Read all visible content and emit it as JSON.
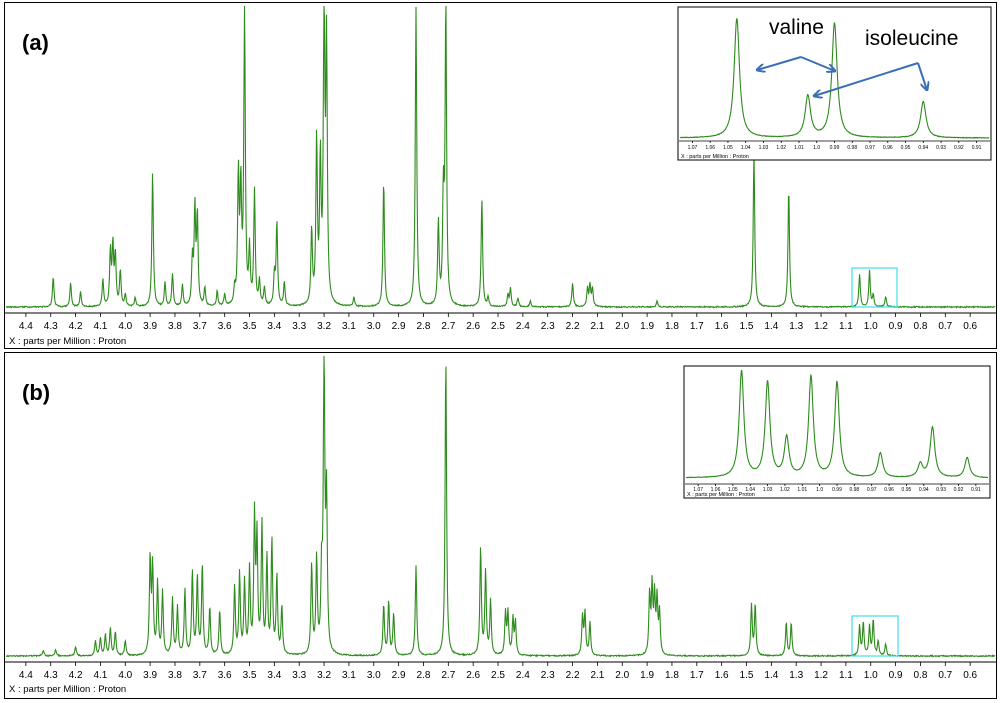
{
  "figure": {
    "annotations": {
      "valine": "valine",
      "isoleucine": "isoleucine"
    },
    "colors": {
      "spectrum": "#2e8b1e",
      "highlight_box": "#40e0f0",
      "arrow": "#3a6fb5",
      "frame": "#000000"
    }
  },
  "chart_data": [
    {
      "type": "line",
      "panel_label": "(a)",
      "xlabel": "X : parts per Million : Proton",
      "x_axis_reversed": true,
      "xlim": [
        4.48,
        0.5
      ],
      "x_ticks": [
        "4.4",
        "4.3",
        "4.2",
        "4.1",
        "4.0",
        "3.9",
        "3.8",
        "3.7",
        "3.6",
        "3.5",
        "3.4",
        "3.3",
        "3.2",
        "3.1",
        "3.0",
        "2.9",
        "2.8",
        "2.7",
        "2.6",
        "2.5",
        "2.4",
        "2.3",
        "2.2",
        "2.1",
        "2.0",
        "1.9",
        "1.8",
        "1.7",
        "1.6",
        "1.5",
        "1.4",
        "1.3",
        "1.2",
        "1.1",
        "1.0",
        "0.9",
        "0.8",
        "0.7",
        "0.6"
      ],
      "peak_width_ppm": 0.0035,
      "peaks": [
        [
          4.29,
          0.1
        ],
        [
          4.22,
          0.08
        ],
        [
          4.18,
          0.05
        ],
        [
          4.09,
          0.09
        ],
        [
          4.06,
          0.18
        ],
        [
          4.05,
          0.2
        ],
        [
          4.04,
          0.17
        ],
        [
          4.02,
          0.12
        ],
        [
          4.0,
          0.04
        ],
        [
          3.96,
          0.03
        ],
        [
          3.89,
          0.45
        ],
        [
          3.84,
          0.08
        ],
        [
          3.81,
          0.11
        ],
        [
          3.77,
          0.07
        ],
        [
          3.73,
          0.15
        ],
        [
          3.72,
          0.32
        ],
        [
          3.71,
          0.3
        ],
        [
          3.68,
          0.06
        ],
        [
          3.63,
          0.05
        ],
        [
          3.6,
          0.04
        ],
        [
          3.56,
          0.05
        ],
        [
          3.545,
          0.43
        ],
        [
          3.535,
          0.38
        ],
        [
          3.52,
          1.0
        ],
        [
          3.5,
          0.18
        ],
        [
          3.48,
          0.38
        ],
        [
          3.46,
          0.08
        ],
        [
          3.44,
          0.06
        ],
        [
          3.4,
          0.1
        ],
        [
          3.39,
          0.28
        ],
        [
          3.36,
          0.08
        ],
        [
          3.25,
          0.25
        ],
        [
          3.23,
          0.55
        ],
        [
          3.215,
          0.47
        ],
        [
          3.2,
          1.0
        ],
        [
          3.19,
          0.85
        ],
        [
          3.08,
          0.03
        ],
        [
          2.96,
          0.42
        ],
        [
          2.83,
          1.0
        ],
        [
          2.74,
          0.28
        ],
        [
          2.72,
          0.35
        ],
        [
          2.71,
          1.0
        ],
        [
          2.565,
          0.36
        ],
        [
          2.54,
          0.03
        ],
        [
          2.46,
          0.04
        ],
        [
          2.45,
          0.06
        ],
        [
          2.42,
          0.03
        ],
        [
          2.37,
          0.02
        ],
        [
          2.2,
          0.08
        ],
        [
          2.14,
          0.06
        ],
        [
          2.13,
          0.07
        ],
        [
          2.12,
          0.06
        ],
        [
          1.86,
          0.02
        ],
        [
          1.47,
          0.52
        ],
        [
          1.33,
          0.4
        ],
        [
          1.045,
          0.11
        ],
        [
          1.005,
          0.12
        ],
        [
          0.99,
          0.04
        ],
        [
          0.94,
          0.035
        ]
      ],
      "inset": {
        "x_ticks": [
          "1.07",
          "1.06",
          "1.05",
          "1.04",
          "1.03",
          "1.02",
          "1.01",
          "1.0",
          "0.99",
          "0.98",
          "0.97",
          "0.96",
          "0.95",
          "0.94",
          "0.93",
          "0.92",
          "0.91"
        ],
        "xlim": [
          1.077,
          0.903
        ],
        "xlabel": "X : parts per Million : Proton",
        "peak_width_ppm": 0.0018,
        "peaks": [
          [
            1.045,
            0.92
          ],
          [
            1.005,
            0.32
          ],
          [
            0.99,
            0.88
          ],
          [
            0.94,
            0.28
          ]
        ]
      }
    },
    {
      "type": "line",
      "panel_label": "(b)",
      "xlabel": "X : parts per Million : Proton",
      "x_axis_reversed": true,
      "xlim": [
        4.48,
        0.5
      ],
      "x_ticks": [
        "4.4",
        "4.3",
        "4.2",
        "4.1",
        "4.0",
        "3.9",
        "3.8",
        "3.7",
        "3.6",
        "3.5",
        "3.4",
        "3.3",
        "3.2",
        "3.1",
        "3.0",
        "2.9",
        "2.8",
        "2.7",
        "2.6",
        "2.5",
        "2.4",
        "2.3",
        "2.2",
        "2.1",
        "2.0",
        "1.9",
        "1.8",
        "1.7",
        "1.6",
        "1.5",
        "1.4",
        "1.3",
        "1.2",
        "1.1",
        "1.0",
        "0.9",
        "0.8",
        "0.7",
        "0.6"
      ],
      "peak_width_ppm": 0.0035,
      "peaks": [
        [
          4.33,
          0.02
        ],
        [
          4.28,
          0.02
        ],
        [
          4.2,
          0.03
        ],
        [
          4.12,
          0.05
        ],
        [
          4.1,
          0.06
        ],
        [
          4.08,
          0.07
        ],
        [
          4.06,
          0.09
        ],
        [
          4.04,
          0.08
        ],
        [
          4.0,
          0.05
        ],
        [
          3.9,
          0.32
        ],
        [
          3.89,
          0.29
        ],
        [
          3.87,
          0.24
        ],
        [
          3.85,
          0.21
        ],
        [
          3.81,
          0.19
        ],
        [
          3.79,
          0.16
        ],
        [
          3.76,
          0.22
        ],
        [
          3.73,
          0.28
        ],
        [
          3.71,
          0.26
        ],
        [
          3.69,
          0.3
        ],
        [
          3.66,
          0.16
        ],
        [
          3.62,
          0.15
        ],
        [
          3.56,
          0.23
        ],
        [
          3.54,
          0.27
        ],
        [
          3.52,
          0.24
        ],
        [
          3.5,
          0.28
        ],
        [
          3.48,
          0.45
        ],
        [
          3.47,
          0.38
        ],
        [
          3.45,
          0.43
        ],
        [
          3.43,
          0.32
        ],
        [
          3.41,
          0.38
        ],
        [
          3.39,
          0.26
        ],
        [
          3.37,
          0.16
        ],
        [
          3.25,
          0.3
        ],
        [
          3.23,
          0.32
        ],
        [
          3.21,
          0.25
        ],
        [
          3.2,
          1.0
        ],
        [
          3.19,
          0.5
        ],
        [
          2.96,
          0.17
        ],
        [
          2.94,
          0.18
        ],
        [
          2.92,
          0.14
        ],
        [
          2.83,
          0.3
        ],
        [
          2.71,
          1.0
        ],
        [
          2.57,
          0.36
        ],
        [
          2.55,
          0.28
        ],
        [
          2.53,
          0.18
        ],
        [
          2.47,
          0.14
        ],
        [
          2.46,
          0.14
        ],
        [
          2.44,
          0.12
        ],
        [
          2.43,
          0.11
        ],
        [
          2.16,
          0.13
        ],
        [
          2.15,
          0.14
        ],
        [
          2.13,
          0.11
        ],
        [
          1.89,
          0.2
        ],
        [
          1.88,
          0.22
        ],
        [
          1.87,
          0.19
        ],
        [
          1.86,
          0.18
        ],
        [
          1.85,
          0.14
        ],
        [
          1.48,
          0.17
        ],
        [
          1.465,
          0.17
        ],
        [
          1.34,
          0.11
        ],
        [
          1.32,
          0.11
        ],
        [
          1.045,
          0.1
        ],
        [
          1.03,
          0.11
        ],
        [
          1.005,
          0.1
        ],
        [
          0.99,
          0.12
        ],
        [
          0.97,
          0.05
        ],
        [
          0.94,
          0.04
        ]
      ],
      "inset": {
        "x_ticks": [
          "1.07",
          "1.06",
          "1.05",
          "1.04",
          "1.03",
          "1.02",
          "1.01",
          "1.0",
          "0.99",
          "0.98",
          "0.97",
          "0.96",
          "0.95",
          "0.94",
          "0.93",
          "0.92",
          "0.91"
        ],
        "xlim": [
          1.077,
          0.903
        ],
        "xlabel": "X : parts per Million : Proton",
        "peak_width_ppm": 0.0016,
        "peaks": [
          [
            1.045,
            0.95
          ],
          [
            1.03,
            0.85
          ],
          [
            1.019,
            0.35
          ],
          [
            1.005,
            0.9
          ],
          [
            0.99,
            0.85
          ],
          [
            0.965,
            0.22
          ],
          [
            0.942,
            0.12
          ],
          [
            0.935,
            0.45
          ],
          [
            0.915,
            0.18
          ]
        ]
      }
    }
  ]
}
